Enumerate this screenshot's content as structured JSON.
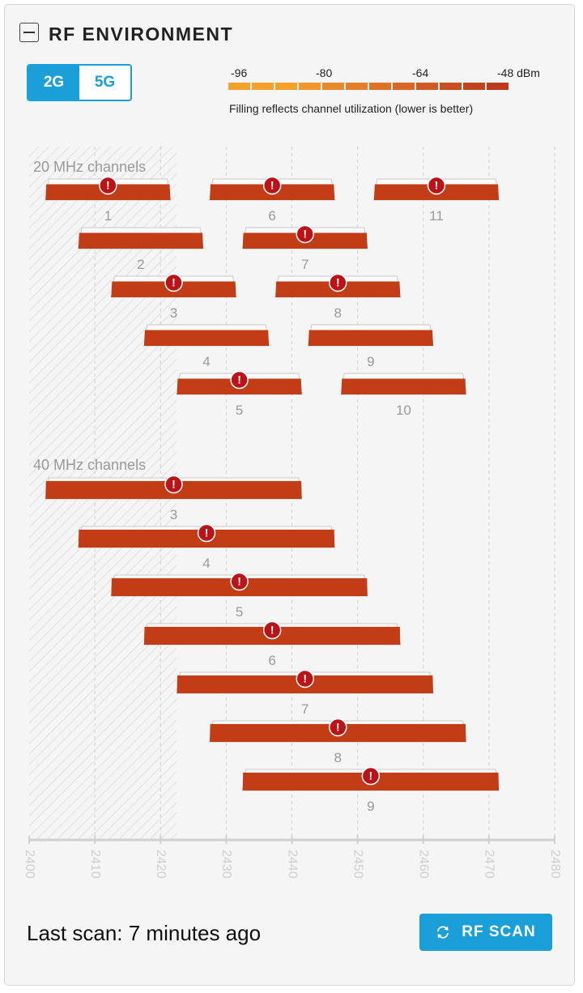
{
  "header": {
    "title": "RF ENVIRONMENT",
    "collapse_icon": "collapse-icon"
  },
  "band_toggle": {
    "options": [
      "2G",
      "5G"
    ],
    "selected": "2G"
  },
  "legend": {
    "dbm_labels": [
      "-96",
      "-80",
      "-64",
      "-48 dBm"
    ],
    "colors": [
      "#f7a12b",
      "#f7a12b",
      "#f7a12b",
      "#f4962a",
      "#e88a2c",
      "#e47e29",
      "#e07228",
      "#d96526",
      "#d15a24",
      "#c94d21",
      "#c4421e",
      "#bf3a1d"
    ],
    "note": "Filling reflects channel utilization (lower is better)"
  },
  "chart_data": {
    "type": "channel-occupancy",
    "x_axis": {
      "min": 2400,
      "max": 2480,
      "ticks": [
        "2400",
        "2410",
        "2420",
        "2430",
        "2440",
        "2450",
        "2460",
        "2470",
        "2480"
      ],
      "unit": "MHz"
    },
    "restricted_range": [
      2400,
      2422.5
    ],
    "sections": [
      {
        "label": "20 MHz channels",
        "width_mhz": 20,
        "channels": [
          {
            "channel": "1",
            "center": 2412,
            "utilization": 0.75,
            "warning": true
          },
          {
            "channel": "6",
            "center": 2437,
            "utilization": 0.75,
            "warning": true
          },
          {
            "channel": "11",
            "center": 2462,
            "utilization": 0.75,
            "warning": true
          },
          {
            "channel": "2",
            "center": 2417,
            "utilization": 0.75,
            "warning": false
          },
          {
            "channel": "7",
            "center": 2442,
            "utilization": 0.75,
            "warning": true
          },
          {
            "channel": "3",
            "center": 2422,
            "utilization": 0.75,
            "warning": true
          },
          {
            "channel": "8",
            "center": 2447,
            "utilization": 0.75,
            "warning": true
          },
          {
            "channel": "4",
            "center": 2427,
            "utilization": 0.75,
            "warning": false
          },
          {
            "channel": "9",
            "center": 2452,
            "utilization": 0.75,
            "warning": false
          },
          {
            "channel": "5",
            "center": 2432,
            "utilization": 0.75,
            "warning": true
          },
          {
            "channel": "10",
            "center": 2457,
            "utilization": 0.75,
            "warning": false
          }
        ]
      },
      {
        "label": "40 MHz channels",
        "width_mhz": 40,
        "channels": [
          {
            "channel": "3",
            "center": 2422,
            "utilization": 0.85,
            "warning": true
          },
          {
            "channel": "4",
            "center": 2427,
            "utilization": 0.85,
            "warning": true
          },
          {
            "channel": "5",
            "center": 2432,
            "utilization": 0.85,
            "warning": true
          },
          {
            "channel": "6",
            "center": 2437,
            "utilization": 0.85,
            "warning": true
          },
          {
            "channel": "7",
            "center": 2442,
            "utilization": 0.85,
            "warning": true
          },
          {
            "channel": "8",
            "center": 2447,
            "utilization": 0.85,
            "warning": true
          },
          {
            "channel": "9",
            "center": 2452,
            "utilization": 0.85,
            "warning": true
          }
        ]
      }
    ]
  },
  "footer": {
    "last_scan": "Last scan: 7 minutes ago",
    "scan_button": "RF SCAN",
    "scan_icon": "refresh-icon"
  }
}
